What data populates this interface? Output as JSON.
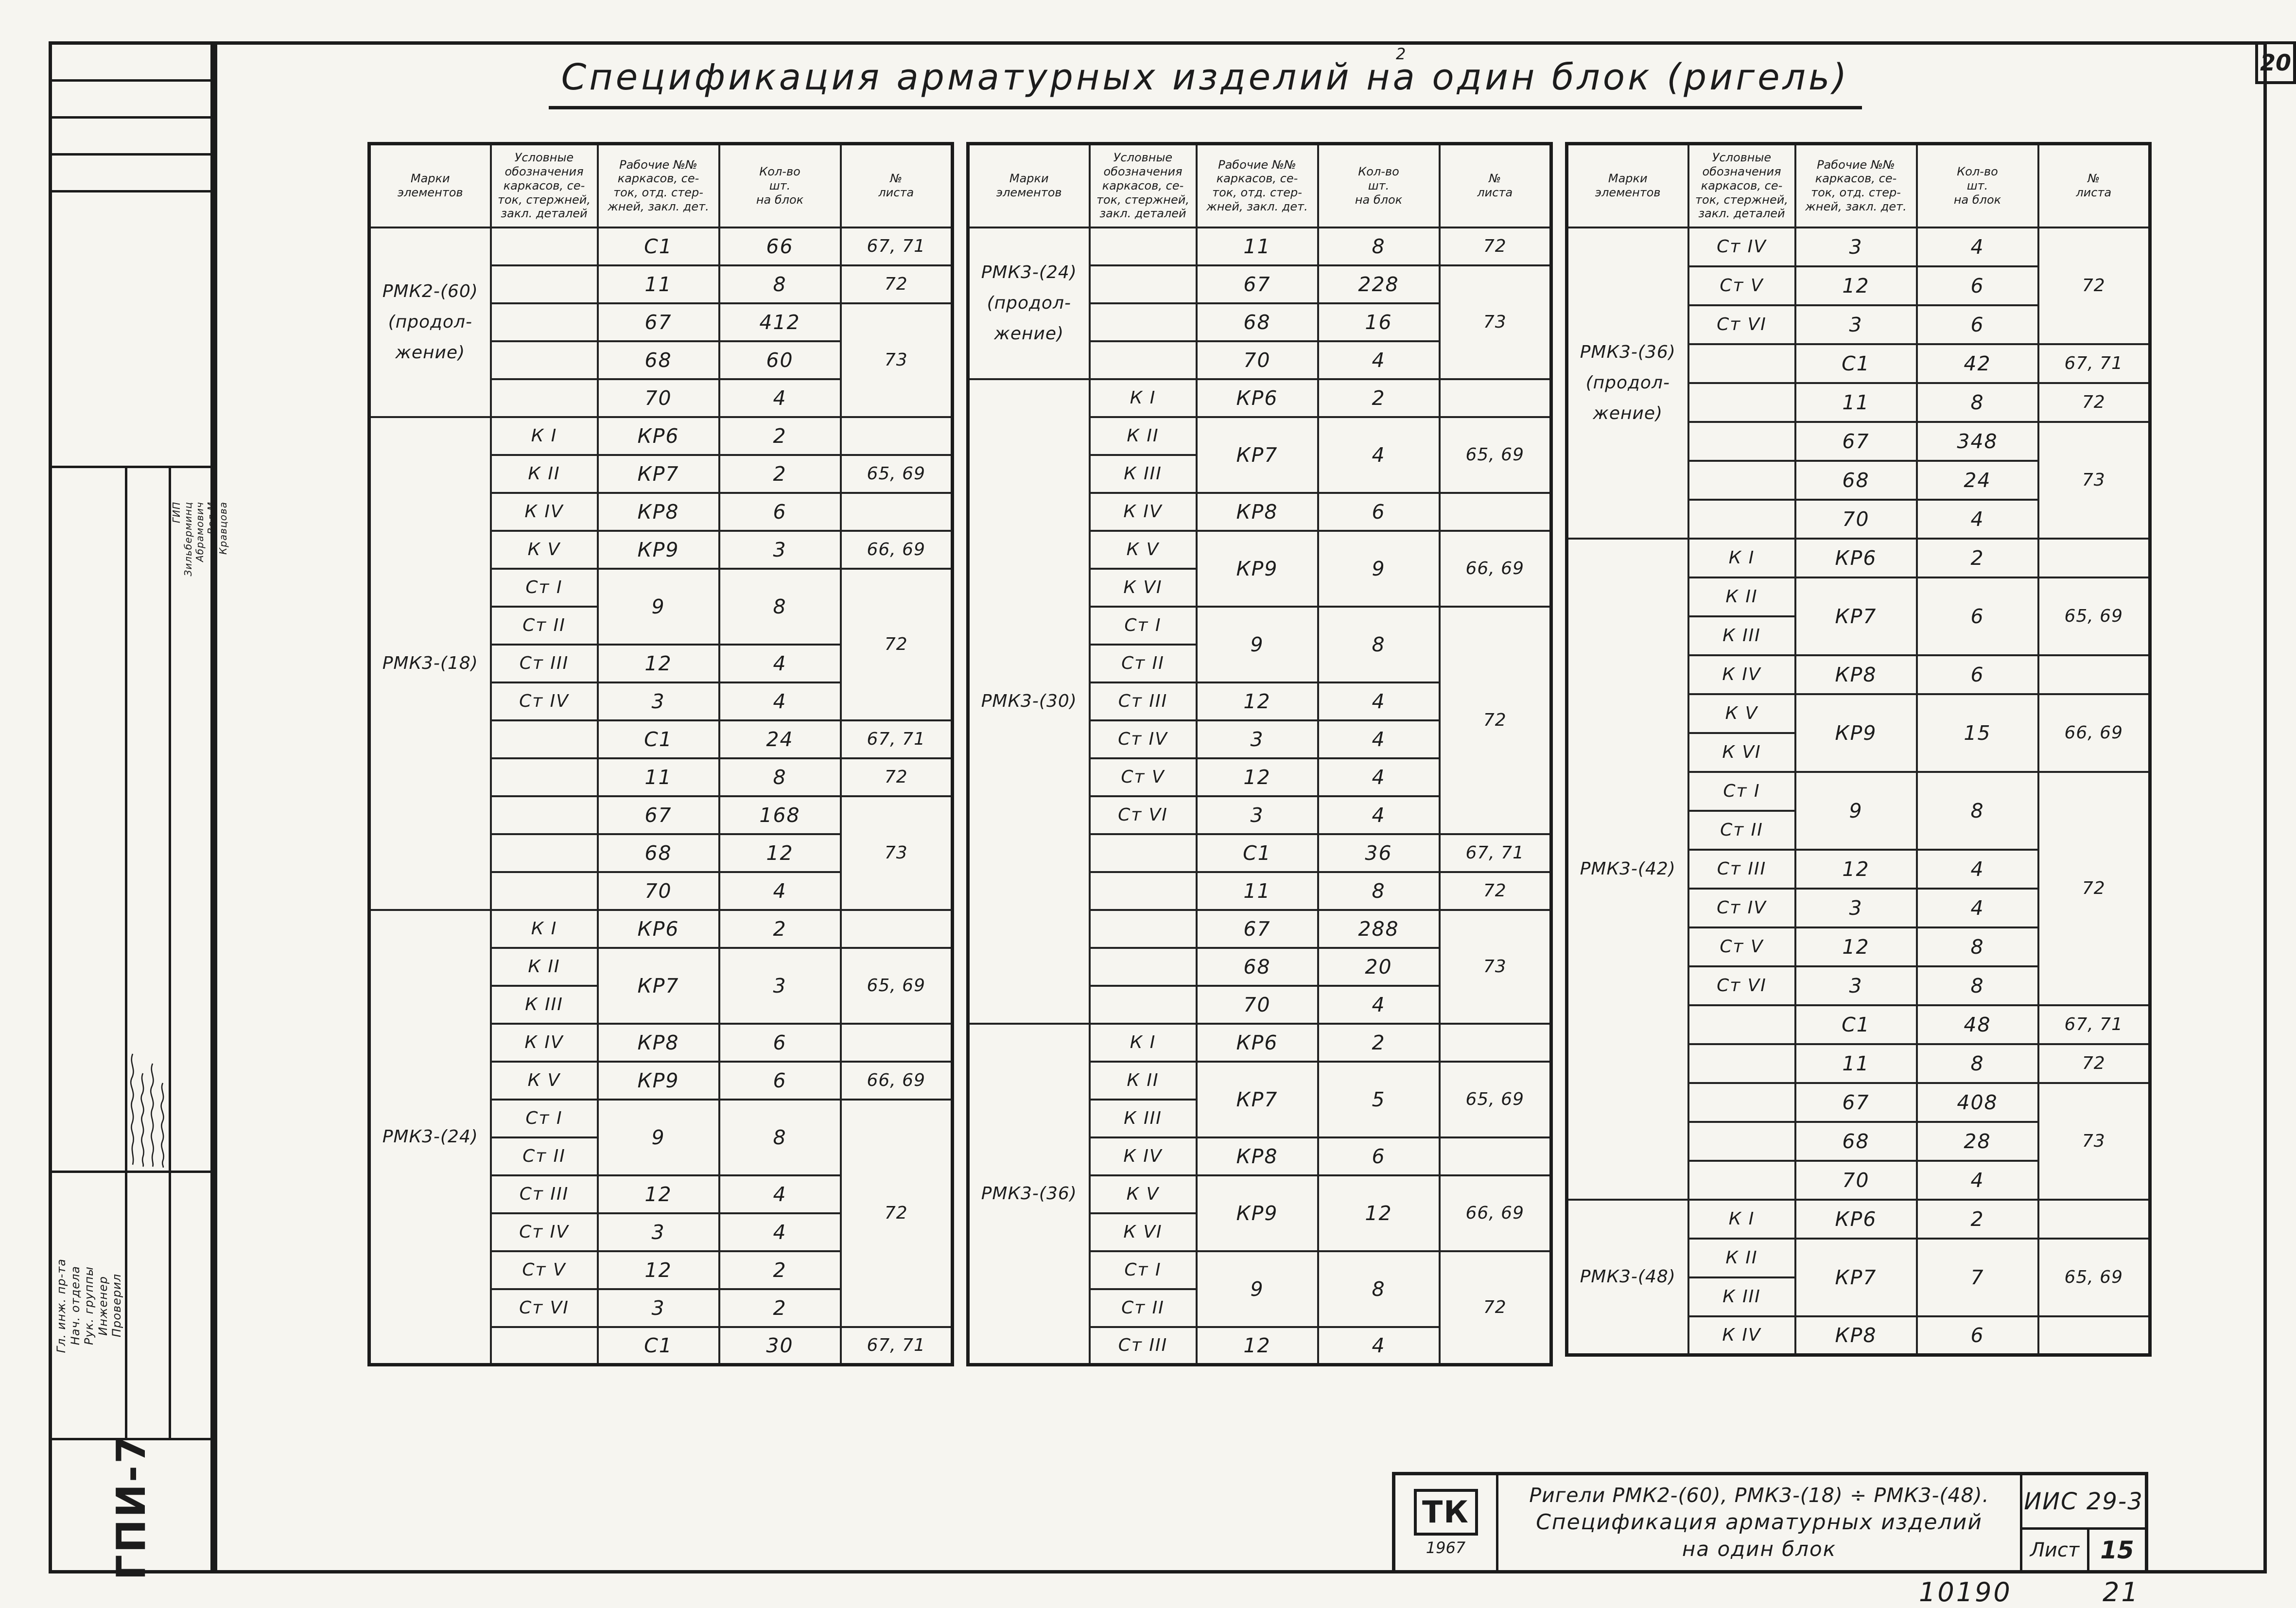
{
  "page": {
    "corner_sheet_number": "20",
    "title": "Спецификация арматурных изделий на один блок (ригель)",
    "title_superscript": "2",
    "inventory_number": "10190",
    "inventory_extra": "21"
  },
  "stamp": {
    "org": "ГПИ-7",
    "gip_label": "ГИП",
    "roles": [
      "Гл. инж. пр-та",
      "Нач. отдела",
      "Рук. группы",
      "Инженер",
      "Проверил"
    ],
    "names": [
      "Зильберминц",
      "Абрамович",
      "Вол М",
      "Кравцова"
    ]
  },
  "table_headers": {
    "mark": "Марки\nэлементов",
    "designation": "Условные\nобозначения\nкаркасов, се-\nток, стержней,\nзакл. деталей",
    "number": "Рабочие №№\nкаркасов, се-\nток, отд. стер-\nжней, закл. дет.",
    "qty": "Кол-во\nшт.\nна блок",
    "sheet": "№\nлиста"
  },
  "tables": [
    {
      "groups": [
        {
          "mark": "РМК2-(60)\n(продол-\nжение)",
          "rows": [
            [
              "",
              "С1",
              "66",
              "67, 71"
            ],
            [
              "",
              "11",
              "8",
              "72"
            ],
            [
              "",
              "67",
              "412",
              "73"
            ],
            [
              "",
              "68",
              "60",
              "^"
            ],
            [
              "",
              "70",
              "4",
              "^"
            ]
          ]
        },
        {
          "mark": "РМК3-(18)",
          "rows": [
            [
              "К I",
              "КР6",
              "2",
              ""
            ],
            [
              "К II",
              "КР7",
              "2",
              "65, 69"
            ],
            [
              "К IV",
              "КР8",
              "6",
              ""
            ],
            [
              "К V",
              "КР9",
              "3",
              "66, 69"
            ],
            [
              "Ст I",
              "9",
              "8",
              "72"
            ],
            [
              "Ст II",
              "^",
              "^",
              "^"
            ],
            [
              "Ст III",
              "12",
              "4",
              "^"
            ],
            [
              "Ст IV",
              "3",
              "4",
              "^"
            ],
            [
              "",
              "С1",
              "24",
              "67, 71"
            ],
            [
              "",
              "11",
              "8",
              "72"
            ],
            [
              "",
              "67",
              "168",
              "73"
            ],
            [
              "",
              "68",
              "12",
              "^"
            ],
            [
              "",
              "70",
              "4",
              "^"
            ]
          ]
        },
        {
          "mark": "РМК3-(24)",
          "rows": [
            [
              "К I",
              "КР6",
              "2",
              ""
            ],
            [
              "К II",
              "КР7",
              "3",
              "65, 69"
            ],
            [
              "К III",
              "^",
              "^",
              "^"
            ],
            [
              "К IV",
              "КР8",
              "6",
              ""
            ],
            [
              "К V",
              "КР9",
              "6",
              "66, 69"
            ],
            [
              "Ст I",
              "9",
              "8",
              "72"
            ],
            [
              "Ст II",
              "^",
              "^",
              "^"
            ],
            [
              "Ст III",
              "12",
              "4",
              "^"
            ],
            [
              "Ст IV",
              "3",
              "4",
              "^"
            ],
            [
              "Ст V",
              "12",
              "2",
              "^"
            ],
            [
              "Ст VI",
              "3",
              "2",
              "^"
            ],
            [
              "",
              "С1",
              "30",
              "67, 71"
            ]
          ]
        }
      ]
    },
    {
      "groups": [
        {
          "mark": "РМК3-(24)\n(продол-\nжение)",
          "rows": [
            [
              "",
              "11",
              "8",
              "72"
            ],
            [
              "",
              "67",
              "228",
              "73"
            ],
            [
              "",
              "68",
              "16",
              "^"
            ],
            [
              "",
              "70",
              "4",
              "^"
            ]
          ]
        },
        {
          "mark": "РМК3-(30)",
          "rows": [
            [
              "К I",
              "КР6",
              "2",
              ""
            ],
            [
              "К II",
              "КР7",
              "4",
              "65, 69"
            ],
            [
              "К III",
              "^",
              "^",
              "^"
            ],
            [
              "К IV",
              "КР8",
              "6",
              ""
            ],
            [
              "К V",
              "КР9",
              "9",
              "66, 69"
            ],
            [
              "К VI",
              "^",
              "^",
              "^"
            ],
            [
              "Ст I",
              "9",
              "8",
              "72"
            ],
            [
              "Ст II",
              "^",
              "^",
              "^"
            ],
            [
              "Ст III",
              "12",
              "4",
              "^"
            ],
            [
              "Ст IV",
              "3",
              "4",
              "^"
            ],
            [
              "Ст V",
              "12",
              "4",
              "^"
            ],
            [
              "Ст VI",
              "3",
              "4",
              "^"
            ],
            [
              "",
              "С1",
              "36",
              "67, 71"
            ],
            [
              "",
              "11",
              "8",
              "72"
            ],
            [
              "",
              "67",
              "288",
              "73"
            ],
            [
              "",
              "68",
              "20",
              "^"
            ],
            [
              "",
              "70",
              "4",
              "^"
            ]
          ]
        },
        {
          "mark": "РМК3-(36)",
          "rows": [
            [
              "К I",
              "КР6",
              "2",
              ""
            ],
            [
              "К II",
              "КР7",
              "5",
              "65, 69"
            ],
            [
              "К III",
              "^",
              "^",
              "^"
            ],
            [
              "К IV",
              "КР8",
              "6",
              ""
            ],
            [
              "К V",
              "КР9",
              "12",
              "66, 69"
            ],
            [
              "К VI",
              "^",
              "^",
              "^"
            ],
            [
              "Ст I",
              "9",
              "8",
              "72"
            ],
            [
              "Ст II",
              "^",
              "^",
              "^"
            ],
            [
              "Ст III",
              "12",
              "4",
              "^"
            ]
          ]
        }
      ]
    },
    {
      "groups": [
        {
          "mark": "РМК3-(36)\n(продол-\nжение)",
          "rows": [
            [
              "Ст IV",
              "3",
              "4",
              "72"
            ],
            [
              "Ст V",
              "12",
              "6",
              "^"
            ],
            [
              "Ст VI",
              "3",
              "6",
              "^"
            ],
            [
              "",
              "С1",
              "42",
              "67, 71"
            ],
            [
              "",
              "11",
              "8",
              "72"
            ],
            [
              "",
              "67",
              "348",
              "73"
            ],
            [
              "",
              "68",
              "24",
              "^"
            ],
            [
              "",
              "70",
              "4",
              "^"
            ]
          ]
        },
        {
          "mark": "РМК3-(42)",
          "rows": [
            [
              "К I",
              "КР6",
              "2",
              ""
            ],
            [
              "К II",
              "КР7",
              "6",
              "65, 69"
            ],
            [
              "К III",
              "^",
              "^",
              "^"
            ],
            [
              "К IV",
              "КР8",
              "6",
              ""
            ],
            [
              "К V",
              "КР9",
              "15",
              "66, 69"
            ],
            [
              "К VI",
              "^",
              "^",
              "^"
            ],
            [
              "Ст I",
              "9",
              "8",
              "72"
            ],
            [
              "Ст II",
              "^",
              "^",
              "^"
            ],
            [
              "Ст III",
              "12",
              "4",
              "^"
            ],
            [
              "Ст IV",
              "3",
              "4",
              "^"
            ],
            [
              "Ст V",
              "12",
              "8",
              "^"
            ],
            [
              "Ст VI",
              "3",
              "8",
              "^"
            ],
            [
              "",
              "С1",
              "48",
              "67, 71"
            ],
            [
              "",
              "11",
              "8",
              "72"
            ],
            [
              "",
              "67",
              "408",
              "73"
            ],
            [
              "",
              "68",
              "28",
              "^"
            ],
            [
              "",
              "70",
              "4",
              "^"
            ]
          ]
        },
        {
          "mark": "РМК3-(48)",
          "rows": [
            [
              "К I",
              "КР6",
              "2",
              ""
            ],
            [
              "К II",
              "КР7",
              "7",
              "65, 69"
            ],
            [
              "К III",
              "^",
              "^",
              "^"
            ],
            [
              "К IV",
              "КР8",
              "6",
              ""
            ]
          ]
        }
      ]
    }
  ],
  "title_block": {
    "logo": "ТК",
    "year": "1967",
    "line1": "Ригели РМК2-(60), РМК3-(18) ÷ РМК3-(48).",
    "line2": "Спецификация арматурных изделий",
    "line3": "на один блок",
    "code": "ИИС 29-3",
    "sheet_label": "Лист",
    "sheet_number": "15"
  }
}
